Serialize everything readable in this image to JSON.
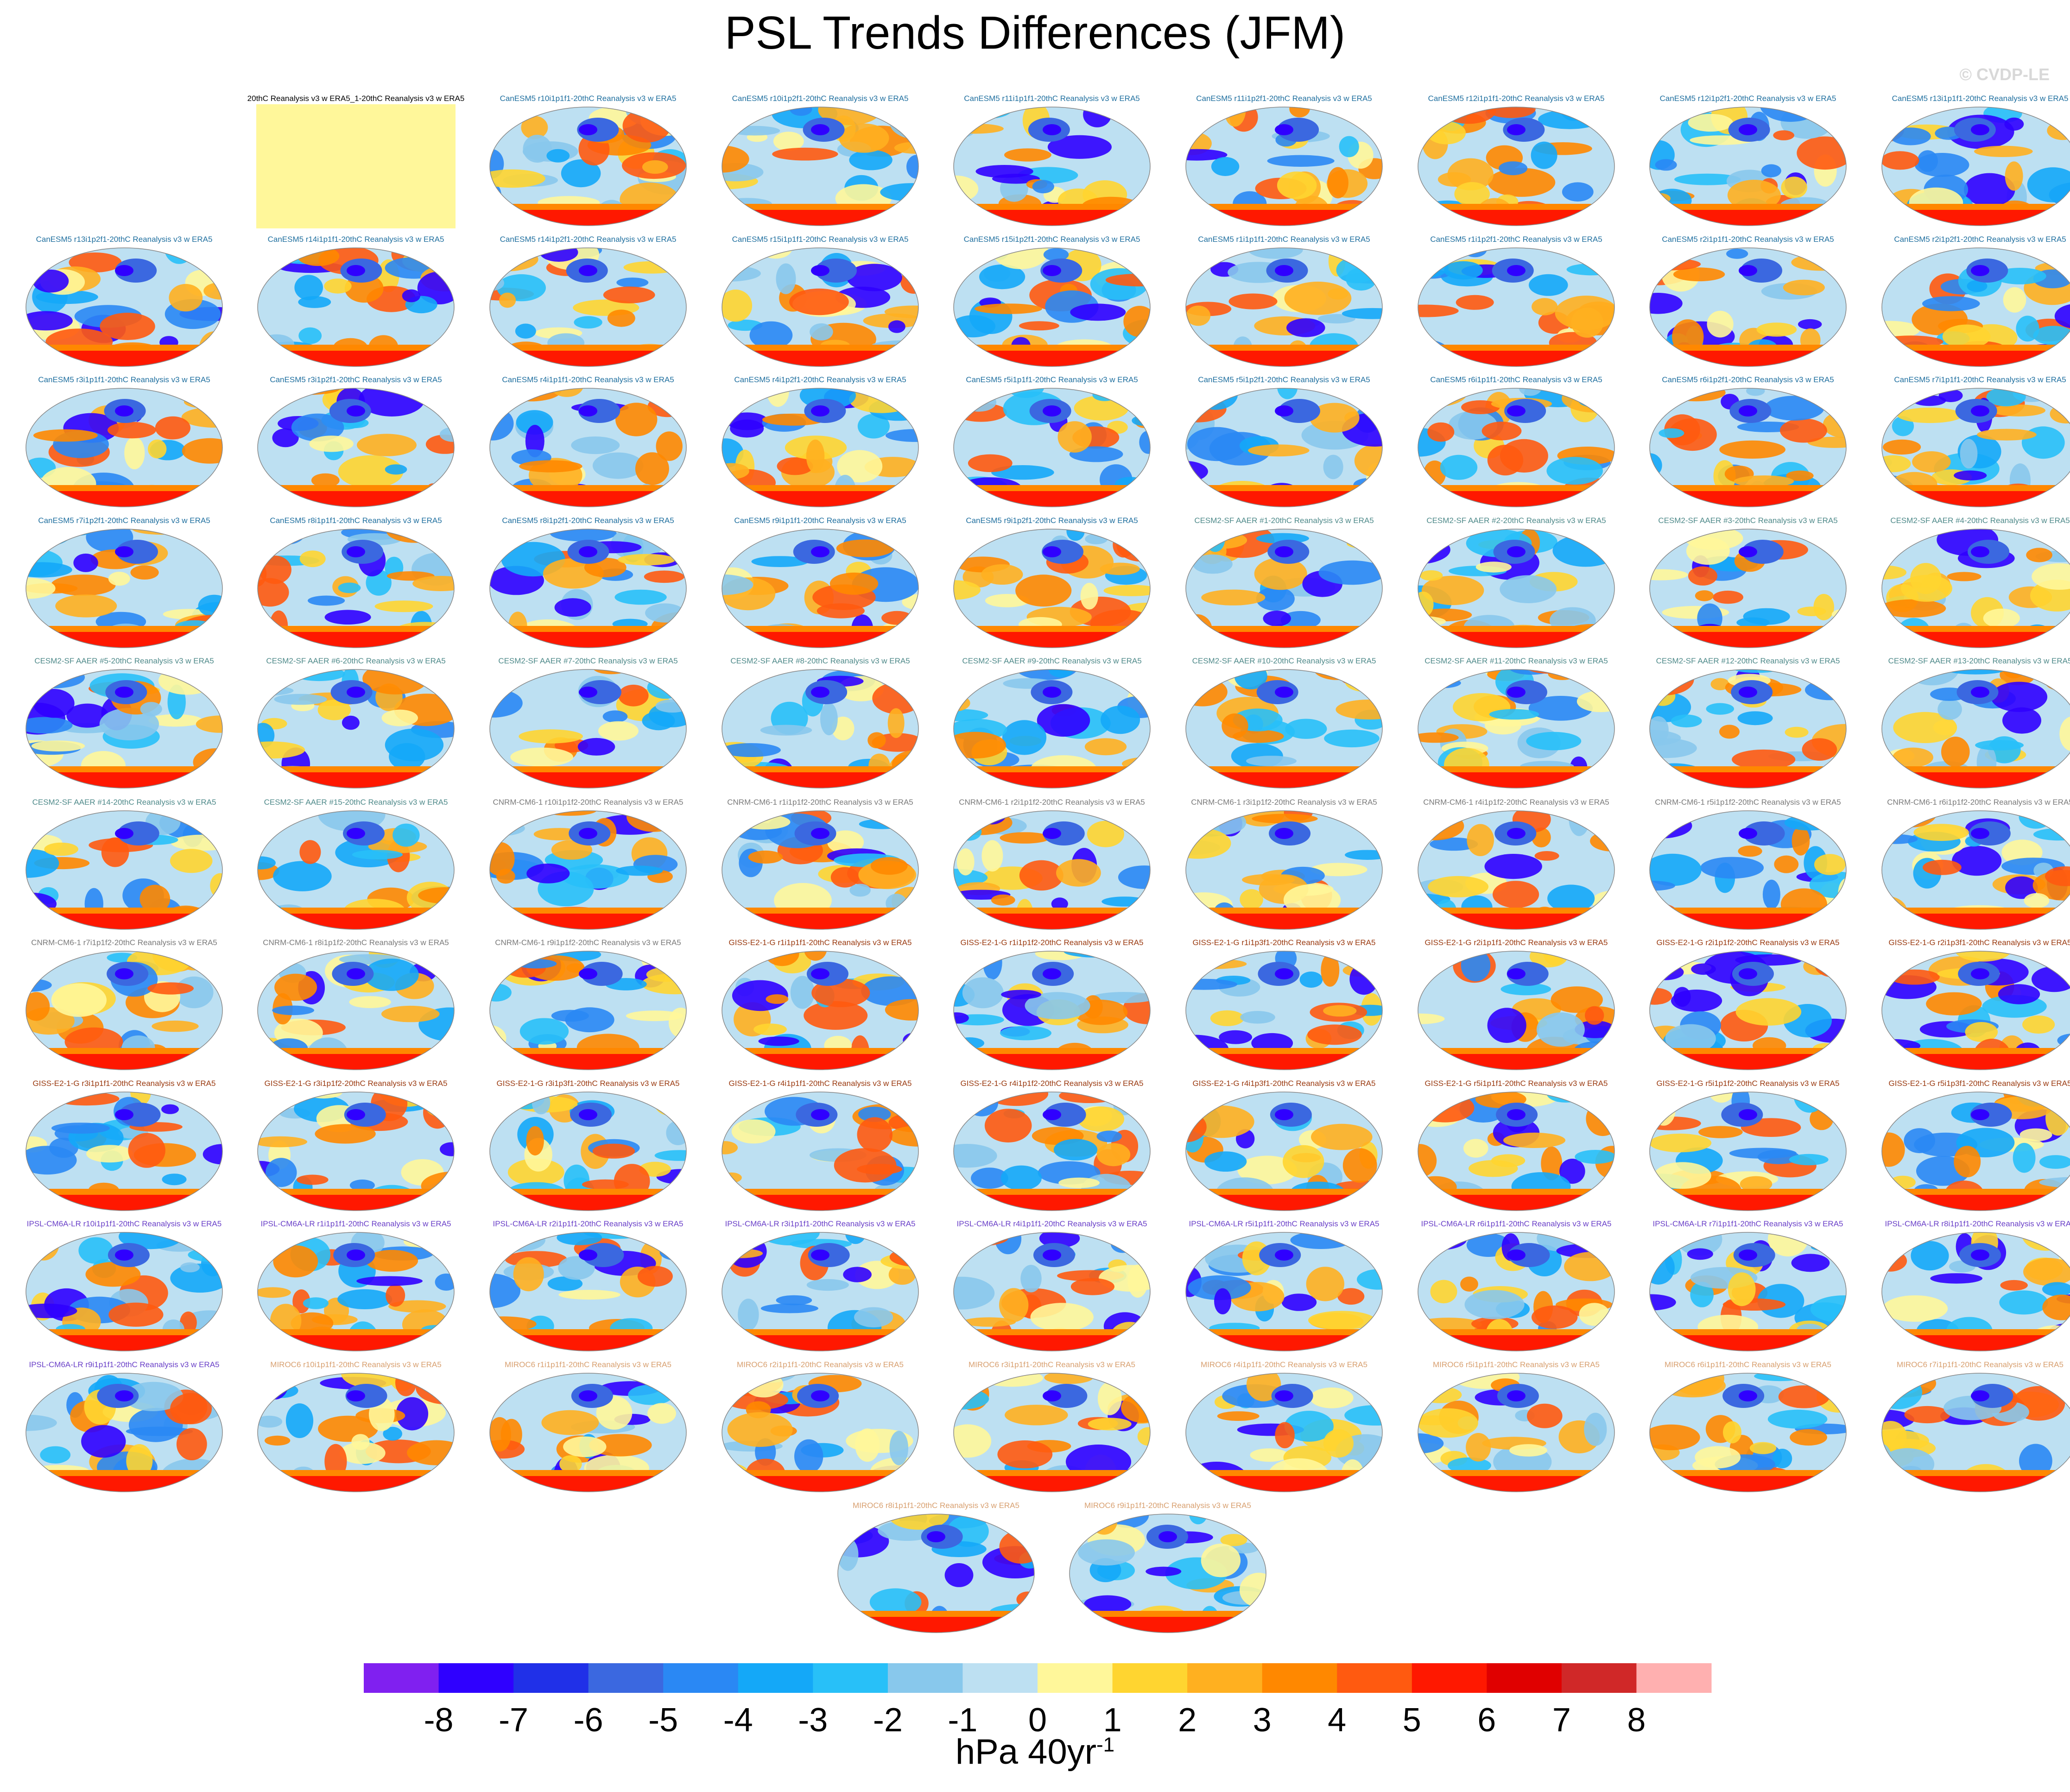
{
  "title": "PSL Trends Differences (JFM)",
  "credit": "© CVDP-LE",
  "colorbar": {
    "units": "hPa 40yr",
    "units_exponent": "-1",
    "tick_labels": [
      "-8",
      "-7",
      "-6",
      "-5",
      "-4",
      "-3",
      "-2",
      "-1",
      "0",
      "1",
      "2",
      "3",
      "4",
      "5",
      "6",
      "7",
      "8"
    ],
    "colors": [
      "#8020f0",
      "#2f00ff",
      "#2030e8",
      "#3b68e0",
      "#2a88f4",
      "#14a8f8",
      "#28c0f8",
      "#88c8ec",
      "#bde0f2",
      "#fff79a",
      "#ffd530",
      "#ffb020",
      "#ff8800",
      "#ff5a10",
      "#ff1800",
      "#e00000",
      "#d02828",
      "#ffb0b0"
    ]
  },
  "panel_titles": [
    "20thC Reanalysis v3 w ERA5_1-20thC Reanalysis v3 w ERA5",
    "CanESM5 r10i1p1f1-20thC Reanalysis v3 w ERA5",
    "CanESM5 r10i1p2f1-20thC Reanalysis v3 w ERA5",
    "CanESM5 r11i1p1f1-20thC Reanalysis v3 w ERA5",
    "CanESM5 r11i1p2f1-20thC Reanalysis v3 w ERA5",
    "CanESM5 r12i1p1f1-20thC Reanalysis v3 w ERA5",
    "CanESM5 r12i1p2f1-20thC Reanalysis v3 w ERA5",
    "CanESM5 r13i1p1f1-20thC Reanalysis v3 w ERA5",
    "CanESM5 r13i1p2f1-20thC Reanalysis v3 w ERA5",
    "CanESM5 r14i1p1f1-20thC Reanalysis v3 w ERA5",
    "CanESM5 r14i1p2f1-20thC Reanalysis v3 w ERA5",
    "CanESM5 r15i1p1f1-20thC Reanalysis v3 w ERA5",
    "CanESM5 r15i1p2f1-20thC Reanalysis v3 w ERA5",
    "CanESM5 r1i1p1f1-20thC Reanalysis v3 w ERA5",
    "CanESM5 r1i1p2f1-20thC Reanalysis v3 w ERA5",
    "CanESM5 r2i1p1f1-20thC Reanalysis v3 w ERA5",
    "CanESM5 r2i1p2f1-20thC Reanalysis v3 w ERA5",
    "CanESM5 r3i1p1f1-20thC Reanalysis v3 w ERA5",
    "CanESM5 r3i1p2f1-20thC Reanalysis v3 w ERA5",
    "CanESM5 r4i1p1f1-20thC Reanalysis v3 w ERA5",
    "CanESM5 r4i1p2f1-20thC Reanalysis v3 w ERA5",
    "CanESM5 r5i1p1f1-20thC Reanalysis v3 w ERA5",
    "CanESM5 r5i1p2f1-20thC Reanalysis v3 w ERA5",
    "CanESM5 r6i1p1f1-20thC Reanalysis v3 w ERA5",
    "CanESM5 r6i1p2f1-20thC Reanalysis v3 w ERA5",
    "CanESM5 r7i1p1f1-20thC Reanalysis v3 w ERA5",
    "CanESM5 r7i1p2f1-20thC Reanalysis v3 w ERA5",
    "CanESM5 r8i1p1f1-20thC Reanalysis v3 w ERA5",
    "CanESM5 r8i1p2f1-20thC Reanalysis v3 w ERA5",
    "CanESM5 r9i1p1f1-20thC Reanalysis v3 w ERA5",
    "CanESM5 r9i1p2f1-20thC Reanalysis v3 w ERA5",
    "CESM2-SF AAER #1-20thC Reanalysis v3 w ERA5",
    "CESM2-SF AAER #2-20thC Reanalysis v3 w ERA5",
    "CESM2-SF AAER #3-20thC Reanalysis v3 w ERA5",
    "CESM2-SF AAER #4-20thC Reanalysis v3 w ERA5",
    "CESM2-SF AAER #5-20thC Reanalysis v3 w ERA5",
    "CESM2-SF AAER #6-20thC Reanalysis v3 w ERA5",
    "CESM2-SF AAER #7-20thC Reanalysis v3 w ERA5",
    "CESM2-SF AAER #8-20thC Reanalysis v3 w ERA5",
    "CESM2-SF AAER #9-20thC Reanalysis v3 w ERA5",
    "CESM2-SF AAER #10-20thC Reanalysis v3 w ERA5",
    "CESM2-SF AAER #11-20thC Reanalysis v3 w ERA5",
    "CESM2-SF AAER #12-20thC Reanalysis v3 w ERA5",
    "CESM2-SF AAER #13-20thC Reanalysis v3 w ERA5",
    "CESM2-SF AAER #14-20thC Reanalysis v3 w ERA5",
    "CESM2-SF AAER #15-20thC Reanalysis v3 w ERA5",
    "CNRM-CM6-1 r10i1p1f2-20thC Reanalysis v3 w ERA5",
    "CNRM-CM6-1 r1i1p1f2-20thC Reanalysis v3 w ERA5",
    "CNRM-CM6-1 r2i1p1f2-20thC Reanalysis v3 w ERA5",
    "CNRM-CM6-1 r3i1p1f2-20thC Reanalysis v3 w ERA5",
    "CNRM-CM6-1 r4i1p1f2-20thC Reanalysis v3 w ERA5",
    "CNRM-CM6-1 r5i1p1f2-20thC Reanalysis v3 w ERA5",
    "CNRM-CM6-1 r6i1p1f2-20thC Reanalysis v3 w ERA5",
    "CNRM-CM6-1 r7i1p1f2-20thC Reanalysis v3 w ERA5",
    "CNRM-CM6-1 r8i1p1f2-20thC Reanalysis v3 w ERA5",
    "CNRM-CM6-1 r9i1p1f2-20thC Reanalysis v3 w ERA5",
    "GISS-E2-1-G r1i1p1f1-20thC Reanalysis v3 w ERA5",
    "GISS-E2-1-G r1i1p1f2-20thC Reanalysis v3 w ERA5",
    "GISS-E2-1-G r1i1p3f1-20thC Reanalysis v3 w ERA5",
    "GISS-E2-1-G r2i1p1f1-20thC Reanalysis v3 w ERA5",
    "GISS-E2-1-G r2i1p1f2-20thC Reanalysis v3 w ERA5",
    "GISS-E2-1-G r2i1p3f1-20thC Reanalysis v3 w ERA5",
    "GISS-E2-1-G r3i1p1f1-20thC Reanalysis v3 w ERA5",
    "GISS-E2-1-G r3i1p1f2-20thC Reanalysis v3 w ERA5",
    "GISS-E2-1-G r3i1p3f1-20thC Reanalysis v3 w ERA5",
    "GISS-E2-1-G r4i1p1f1-20thC Reanalysis v3 w ERA5",
    "GISS-E2-1-G r4i1p1f2-20thC Reanalysis v3 w ERA5",
    "GISS-E2-1-G r4i1p3f1-20thC Reanalysis v3 w ERA5",
    "GISS-E2-1-G r5i1p1f1-20thC Reanalysis v3 w ERA5",
    "GISS-E2-1-G r5i1p1f2-20thC Reanalysis v3 w ERA5",
    "GISS-E2-1-G r5i1p3f1-20thC Reanalysis v3 w ERA5",
    "IPSL-CM6A-LR r10i1p1f1-20thC Reanalysis v3 w ERA5",
    "IPSL-CM6A-LR r1i1p1f1-20thC Reanalysis v3 w ERA5",
    "IPSL-CM6A-LR r2i1p1f1-20thC Reanalysis v3 w ERA5",
    "IPSL-CM6A-LR r3i1p1f1-20thC Reanalysis v3 w ERA5",
    "IPSL-CM6A-LR r4i1p1f1-20thC Reanalysis v3 w ERA5",
    "IPSL-CM6A-LR r5i1p1f1-20thC Reanalysis v3 w ERA5",
    "IPSL-CM6A-LR r6i1p1f1-20thC Reanalysis v3 w ERA5",
    "IPSL-CM6A-LR r7i1p1f1-20thC Reanalysis v3 w ERA5",
    "IPSL-CM6A-LR r8i1p1f1-20thC Reanalysis v3 w ERA5",
    "IPSL-CM6A-LR r9i1p1f1-20thC Reanalysis v3 w ERA5",
    "MIROC6 r10i1p1f1-20thC Reanalysis v3 w ERA5",
    "MIROC6 r1i1p1f1-20thC Reanalysis v3 w ERA5",
    "MIROC6 r2i1p1f1-20thC Reanalysis v3 w ERA5",
    "MIROC6 r3i1p1f1-20thC Reanalysis v3 w ERA5",
    "MIROC6 r4i1p1f1-20thC Reanalysis v3 w ERA5",
    "MIROC6 r5i1p1f1-20thC Reanalysis v3 w ERA5",
    "MIROC6 r6i1p1f1-20thC Reanalysis v3 w ERA5",
    "MIROC6 r7i1p1f1-20thC Reanalysis v3 w ERA5",
    "MIROC6 r8i1p1f1-20thC Reanalysis v3 w ERA5",
    "MIROC6 r9i1p1f1-20thC Reanalysis v3 w ERA5"
  ],
  "model_colors": {
    "20thC": "#000000",
    "CanESM5": "#1f6f9f",
    "CESM2-SF": "#4f8a8a",
    "CNRM-CM6-1": "#7a7a7a",
    "GISS-E2-1-G": "#9a3a10",
    "IPSL-CM6A-LR": "#6a40c8",
    "MIROC6": "#d8a070"
  },
  "chart_data": {
    "type": "heatmap",
    "title": "PSL Trends Differences (JFM)",
    "colorbar_label": "hPa 40yr-1",
    "colorbar_range": [
      -8,
      8
    ],
    "colorbar_levels": [
      -8,
      -7,
      -6,
      -5,
      -4,
      -3,
      -2,
      -1,
      0,
      1,
      2,
      3,
      4,
      5,
      6,
      7,
      8
    ],
    "panel_count": 91
  }
}
